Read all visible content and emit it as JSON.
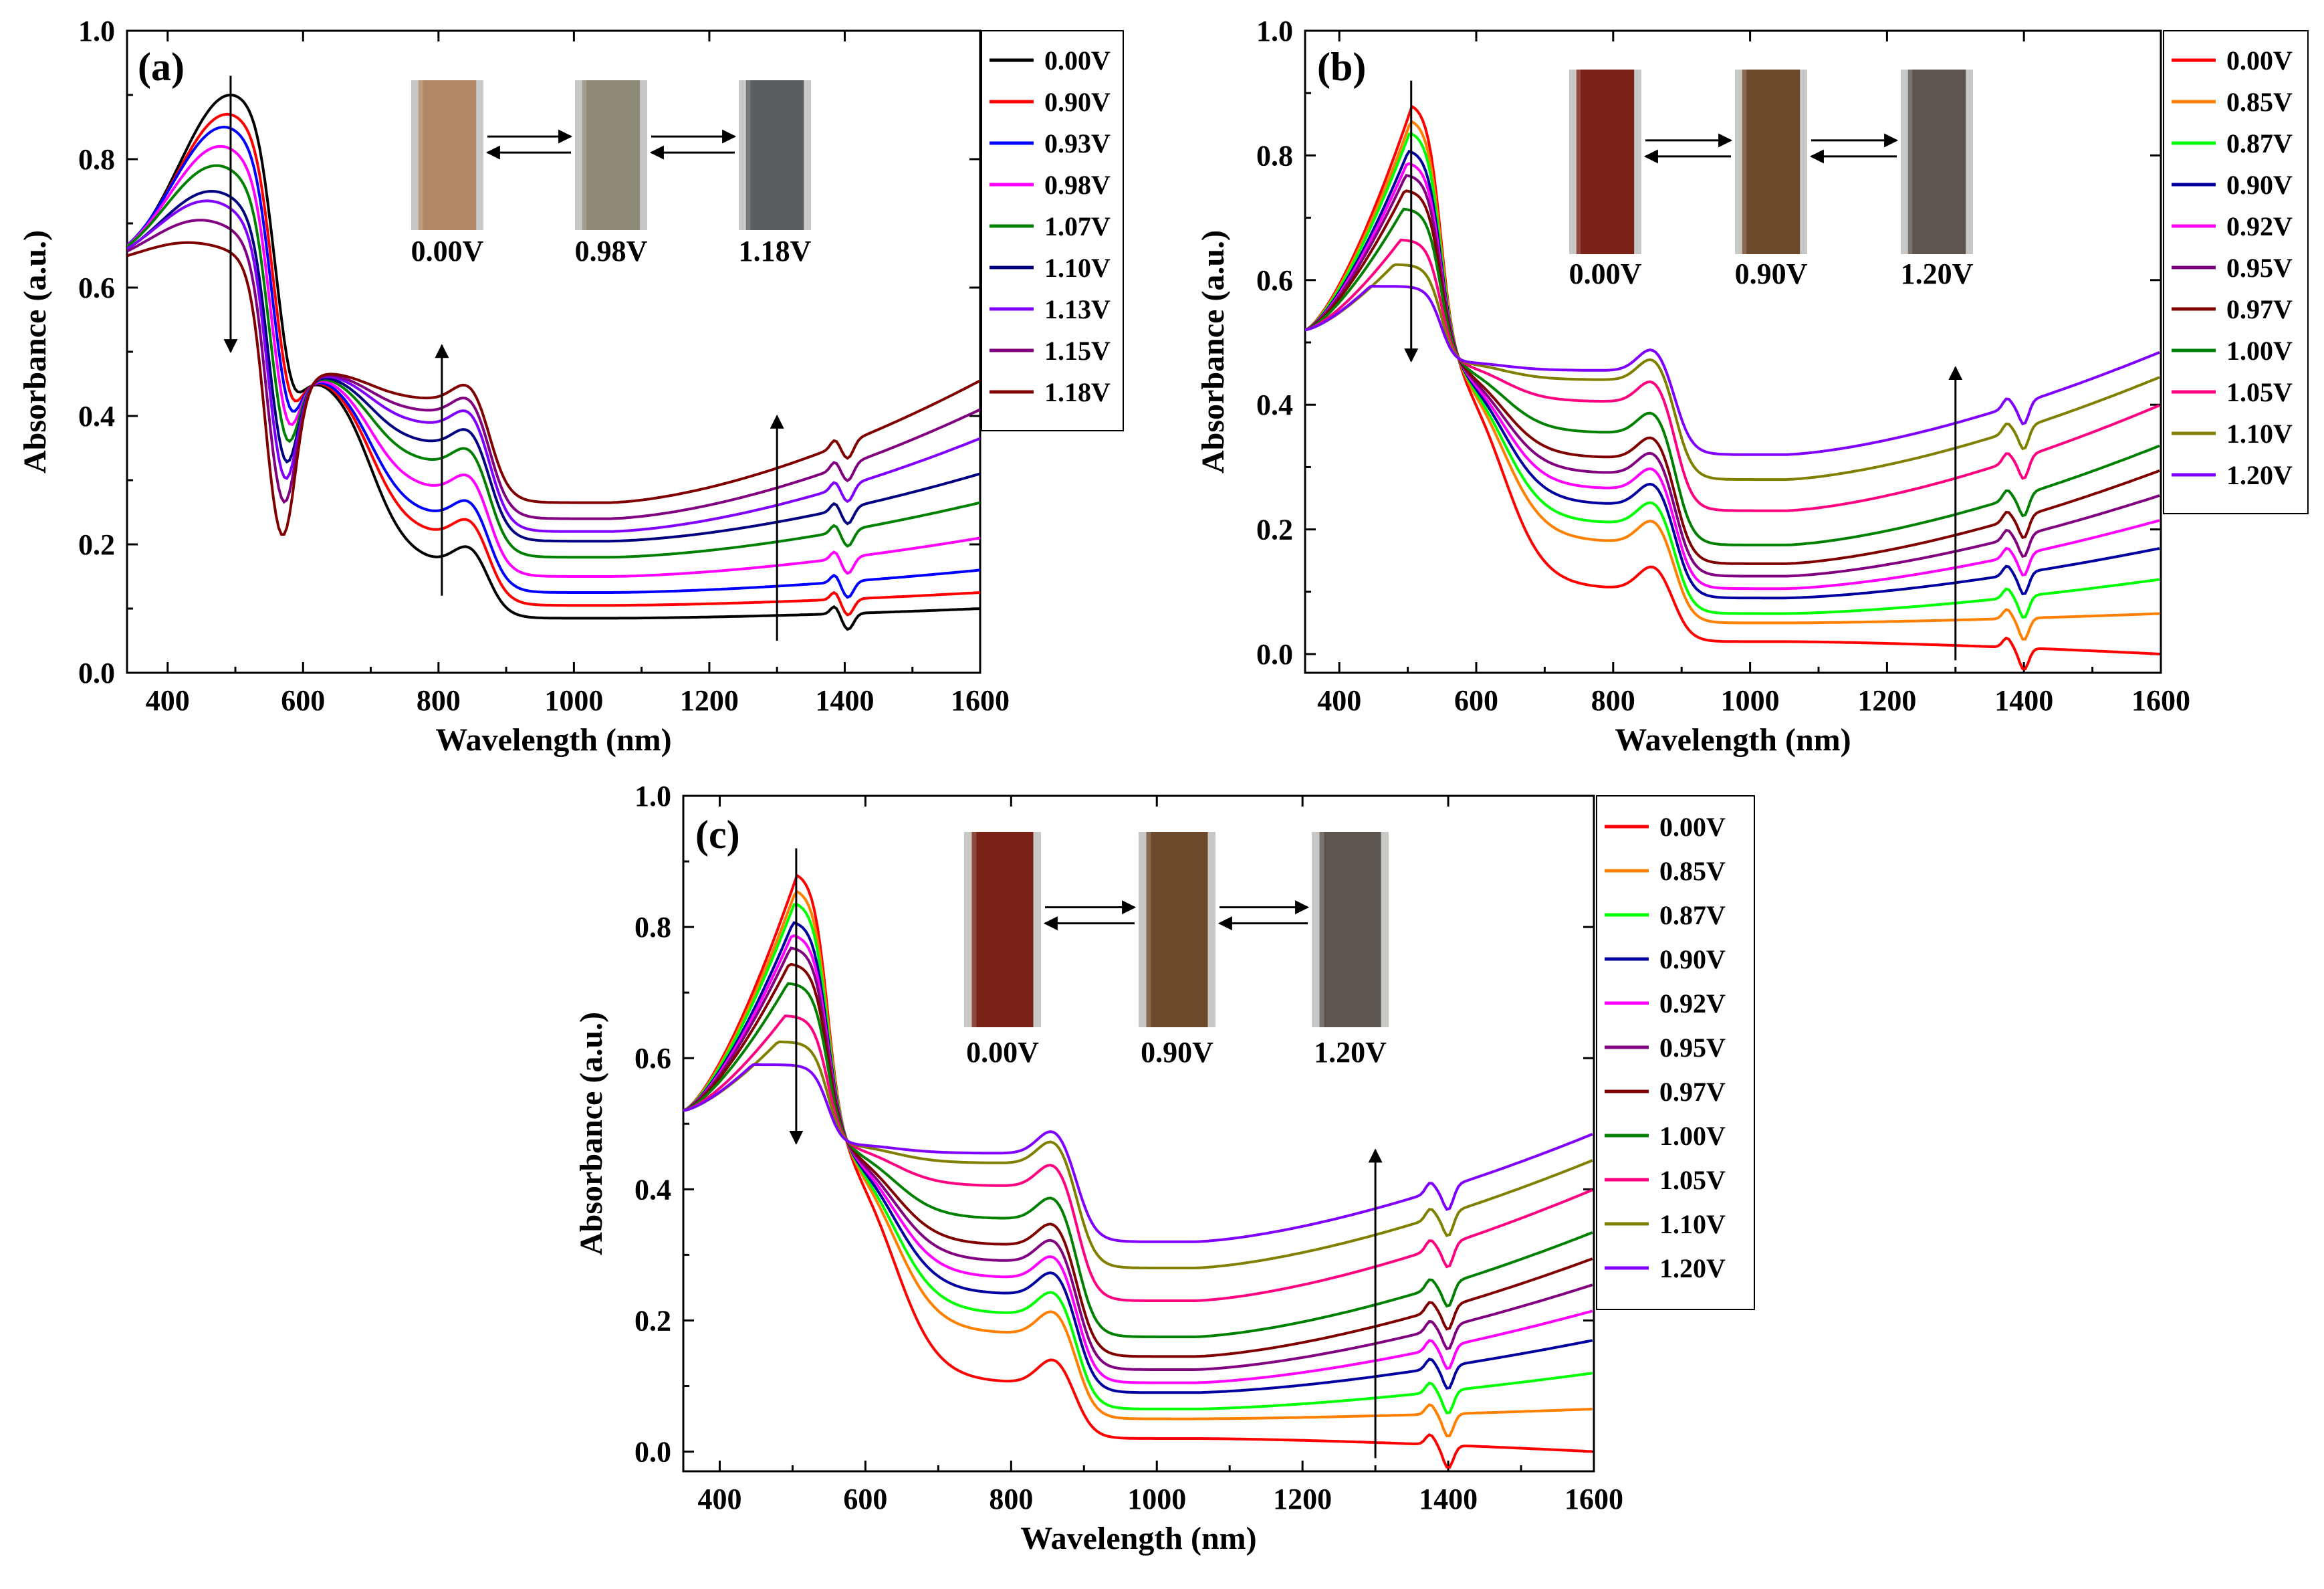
{
  "figure": {
    "description": "UV-Vis-NIR absorbance spectra at different applied voltages"
  },
  "chart_data": [
    {
      "type": "line",
      "panel_label": "(a)",
      "xlabel": "Wavelength (nm)",
      "ylabel": "Absorbance (a.u.)",
      "xlim": [
        340,
        1600
      ],
      "ylim": [
        0.0,
        1.0
      ],
      "xticks": [
        400,
        600,
        800,
        1000,
        1200,
        1400,
        1600
      ],
      "xtick_labels": [
        "400",
        "600",
        "800",
        "1000",
        "1200",
        "1400",
        "1600"
      ],
      "yticks": [
        0.0,
        0.2,
        0.4,
        0.6,
        0.8,
        1.0
      ],
      "ytick_labels": [
        "0.0",
        "0.2",
        "0.4",
        "0.6",
        "0.8",
        "1.0"
      ],
      "legend_position": "outside-right-top",
      "series": [
        {
          "name": "0.00V",
          "color": "#000000",
          "peak": 0.9,
          "peak_x": 493,
          "plateau": 0.188,
          "nir": 0.085,
          "end": 0.1
        },
        {
          "name": "0.90V",
          "color": "#ff0000",
          "peak": 0.87,
          "peak_x": 488,
          "plateau": 0.232,
          "nir": 0.105,
          "end": 0.125
        },
        {
          "name": "0.93V",
          "color": "#0000ff",
          "peak": 0.85,
          "peak_x": 483,
          "plateau": 0.262,
          "nir": 0.125,
          "end": 0.16
        },
        {
          "name": "0.98V",
          "color": "#ff00ff",
          "peak": 0.82,
          "peak_x": 478,
          "plateau": 0.303,
          "nir": 0.15,
          "end": 0.21
        },
        {
          "name": "1.07V",
          "color": "#008000",
          "peak": 0.79,
          "peak_x": 472,
          "plateau": 0.345,
          "nir": 0.18,
          "end": 0.265
        },
        {
          "name": "1.10V",
          "color": "#000080",
          "peak": 0.75,
          "peak_x": 465,
          "plateau": 0.375,
          "nir": 0.205,
          "end": 0.31
        },
        {
          "name": "1.13V",
          "color": "#8000ff",
          "peak": 0.735,
          "peak_x": 458,
          "plateau": 0.405,
          "nir": 0.22,
          "end": 0.365
        },
        {
          "name": "1.15V",
          "color": "#800080",
          "peak": 0.705,
          "peak_x": 448,
          "plateau": 0.425,
          "nir": 0.24,
          "end": 0.41
        },
        {
          "name": "1.18V",
          "color": "#800000",
          "peak": 0.67,
          "peak_x": 430,
          "plateau": 0.445,
          "nir": 0.265,
          "end": 0.455
        }
      ],
      "arrows": [
        {
          "x": 493,
          "from": 0.93,
          "to": 0.5,
          "direction": "down"
        },
        {
          "x": 805,
          "from": 0.12,
          "to": 0.51,
          "direction": "up"
        },
        {
          "x": 1300,
          "from": 0.05,
          "to": 0.4,
          "direction": "up"
        }
      ],
      "photos": [
        {
          "label": "0.00V",
          "color": "#b08868"
        },
        {
          "label": "0.98V",
          "color": "#8e8a78"
        },
        {
          "label": "1.18V",
          "color": "#5a5e5e"
        }
      ]
    },
    {
      "type": "line",
      "panel_label": "(b)",
      "xlabel": "Wavelength (nm)",
      "ylabel": "Absorbance (a.u.)",
      "xlim": [
        350,
        1600
      ],
      "ylim": [
        -0.03,
        1.0
      ],
      "xticks": [
        400,
        600,
        800,
        1000,
        1200,
        1400,
        1600
      ],
      "xtick_labels": [
        "400",
        "600",
        "800",
        "1000",
        "1200",
        "1400",
        "1600"
      ],
      "yticks": [
        0.0,
        0.2,
        0.4,
        0.6,
        0.8,
        1.0
      ],
      "ytick_labels": [
        "0.0",
        "0.2",
        "0.4",
        "0.6",
        "0.8",
        "1.0"
      ],
      "legend_position": "outside-right-top",
      "series": [
        {
          "name": "0.00V",
          "color": "#ff0000",
          "peak": 0.885,
          "peak_x": 508,
          "plateau": 0.125,
          "nir": 0.02,
          "end": 0.0
        },
        {
          "name": "0.85V",
          "color": "#ff8000",
          "peak": 0.86,
          "peak_x": 506,
          "plateau": 0.2,
          "nir": 0.05,
          "end": 0.065
        },
        {
          "name": "0.87V",
          "color": "#00ff00",
          "peak": 0.84,
          "peak_x": 504,
          "plateau": 0.23,
          "nir": 0.065,
          "end": 0.12
        },
        {
          "name": "0.90V",
          "color": "#0000a0",
          "peak": 0.81,
          "peak_x": 502,
          "plateau": 0.26,
          "nir": 0.09,
          "end": 0.17
        },
        {
          "name": "0.92V",
          "color": "#ff00ff",
          "peak": 0.79,
          "peak_x": 500,
          "plateau": 0.285,
          "nir": 0.105,
          "end": 0.215
        },
        {
          "name": "0.95V",
          "color": "#800080",
          "peak": 0.77,
          "peak_x": 498,
          "plateau": 0.31,
          "nir": 0.125,
          "end": 0.255
        },
        {
          "name": "0.97V",
          "color": "#800000",
          "peak": 0.745,
          "peak_x": 496,
          "plateau": 0.335,
          "nir": 0.145,
          "end": 0.295
        },
        {
          "name": "1.00V",
          "color": "#008000",
          "peak": 0.715,
          "peak_x": 494,
          "plateau": 0.375,
          "nir": 0.175,
          "end": 0.335
        },
        {
          "name": "1.05V",
          "color": "#ff0080",
          "peak": 0.665,
          "peak_x": 490,
          "plateau": 0.425,
          "nir": 0.23,
          "end": 0.4
        },
        {
          "name": "1.10V",
          "color": "#808000",
          "peak": 0.625,
          "peak_x": 480,
          "plateau": 0.46,
          "nir": 0.28,
          "end": 0.445
        },
        {
          "name": "1.20V",
          "color": "#8000ff",
          "peak": 0.59,
          "peak_x": 445,
          "plateau": 0.475,
          "nir": 0.32,
          "end": 0.485
        }
      ],
      "arrows": [
        {
          "x": 505,
          "from": 0.92,
          "to": 0.47,
          "direction": "down"
        },
        {
          "x": 1300,
          "from": -0.01,
          "to": 0.46,
          "direction": "up"
        }
      ],
      "photos": [
        {
          "label": "0.00V",
          "color": "#7a2218"
        },
        {
          "label": "0.90V",
          "color": "#6e4a2c"
        },
        {
          "label": "1.20V",
          "color": "#5c544f"
        }
      ]
    },
    {
      "type": "line",
      "panel_label": "(c)",
      "xlabel": "Wavelength (nm)",
      "ylabel": "Absorbance (a.u.)",
      "xlim": [
        350,
        1600
      ],
      "ylim": [
        -0.03,
        1.0
      ],
      "xticks": [
        400,
        600,
        800,
        1000,
        1200,
        1400,
        1600
      ],
      "xtick_labels": [
        "400",
        "600",
        "800",
        "1000",
        "1200",
        "1400",
        "1600"
      ],
      "yticks": [
        0.0,
        0.2,
        0.4,
        0.6,
        0.8,
        1.0
      ],
      "ytick_labels": [
        "0.0",
        "0.2",
        "0.4",
        "0.6",
        "0.8",
        "1.0"
      ],
      "legend_position": "outside-right-top",
      "series": [
        {
          "name": "0.00V",
          "color": "#ff0000",
          "peak": 0.885,
          "peak_x": 508,
          "plateau": 0.125,
          "nir": 0.02,
          "end": 0.0
        },
        {
          "name": "0.85V",
          "color": "#ff8000",
          "peak": 0.86,
          "peak_x": 506,
          "plateau": 0.2,
          "nir": 0.05,
          "end": 0.065
        },
        {
          "name": "0.87V",
          "color": "#00ff00",
          "peak": 0.84,
          "peak_x": 504,
          "plateau": 0.23,
          "nir": 0.065,
          "end": 0.12
        },
        {
          "name": "0.90V",
          "color": "#0000a0",
          "peak": 0.81,
          "peak_x": 502,
          "plateau": 0.26,
          "nir": 0.09,
          "end": 0.17
        },
        {
          "name": "0.92V",
          "color": "#ff00ff",
          "peak": 0.79,
          "peak_x": 500,
          "plateau": 0.285,
          "nir": 0.105,
          "end": 0.215
        },
        {
          "name": "0.95V",
          "color": "#800080",
          "peak": 0.77,
          "peak_x": 498,
          "plateau": 0.31,
          "nir": 0.125,
          "end": 0.255
        },
        {
          "name": "0.97V",
          "color": "#800000",
          "peak": 0.745,
          "peak_x": 496,
          "plateau": 0.335,
          "nir": 0.145,
          "end": 0.295
        },
        {
          "name": "1.00V",
          "color": "#008000",
          "peak": 0.715,
          "peak_x": 494,
          "plateau": 0.375,
          "nir": 0.175,
          "end": 0.335
        },
        {
          "name": "1.05V",
          "color": "#ff0080",
          "peak": 0.665,
          "peak_x": 490,
          "plateau": 0.425,
          "nir": 0.23,
          "end": 0.4
        },
        {
          "name": "1.10V",
          "color": "#808000",
          "peak": 0.625,
          "peak_x": 480,
          "plateau": 0.46,
          "nir": 0.28,
          "end": 0.445
        },
        {
          "name": "1.20V",
          "color": "#8000ff",
          "peak": 0.59,
          "peak_x": 445,
          "plateau": 0.475,
          "nir": 0.32,
          "end": 0.485
        }
      ],
      "arrows": [
        {
          "x": 505,
          "from": 0.92,
          "to": 0.47,
          "direction": "down"
        },
        {
          "x": 1300,
          "from": -0.01,
          "to": 0.46,
          "direction": "up"
        }
      ],
      "photos": [
        {
          "label": "0.00V",
          "color": "#7a2218"
        },
        {
          "label": "0.90V",
          "color": "#6e4a2c"
        },
        {
          "label": "1.20V",
          "color": "#5c544f"
        }
      ]
    }
  ]
}
